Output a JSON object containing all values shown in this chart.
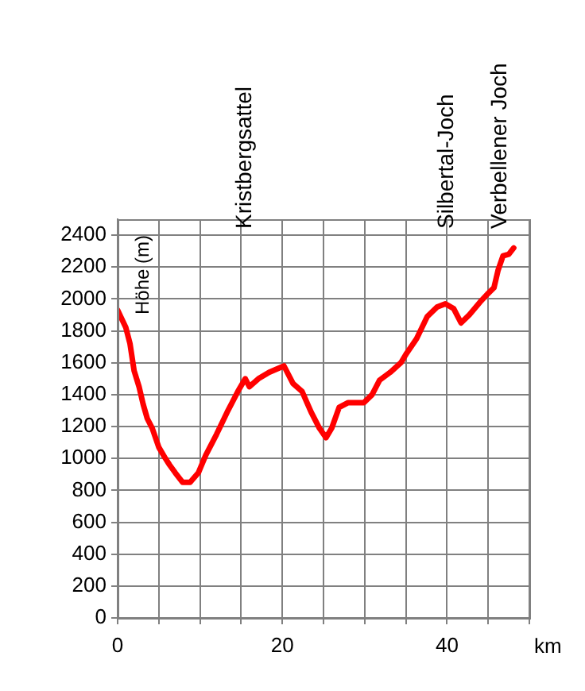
{
  "chart_data": {
    "type": "line",
    "xlabel": "km",
    "ylabel": "Höhe (m)",
    "x": [
      0,
      1.0,
      1.5,
      2.0,
      2.6,
      3.1,
      3.6,
      4.2,
      5.0,
      5.8,
      6.3,
      7.0,
      7.9,
      8.8,
      9.8,
      10.7,
      12.0,
      13.3,
      14.6,
      15.5,
      16.0,
      17.1,
      18.4,
      20.2,
      21.3,
      22.4,
      23.5,
      24.5,
      25.3,
      26.0,
      26.9,
      28.0,
      29.9,
      30.9,
      31.8,
      33.1,
      34.4,
      35.1,
      36.3,
      37.6,
      38.8,
      39.8,
      40.8,
      41.7,
      42.7,
      44.0,
      44.9,
      45.7,
      46.2,
      46.8,
      47.5,
      48.1
    ],
    "series": [
      {
        "color": "#ff0000",
        "values": [
          1930,
          1820,
          1720,
          1550,
          1450,
          1340,
          1250,
          1190,
          1070,
          1000,
          960,
          910,
          850,
          850,
          910,
          1020,
          1150,
          1290,
          1420,
          1500,
          1450,
          1500,
          1540,
          1580,
          1470,
          1420,
          1290,
          1190,
          1130,
          1190,
          1320,
          1350,
          1350,
          1400,
          1490,
          1540,
          1600,
          1660,
          1750,
          1890,
          1950,
          1970,
          1940,
          1850,
          1900,
          1980,
          2030,
          2070,
          2180,
          2270,
          2280,
          2320
        ]
      }
    ],
    "xlim": [
      0,
      50
    ],
    "xticks": [
      0,
      {
        "value": 5,
        "label": null
      },
      {
        "value": 10,
        "label": null
      },
      {
        "value": 15,
        "label": null
      },
      20,
      {
        "value": 25,
        "label": null
      },
      {
        "value": 30,
        "label": null
      },
      {
        "value": 35,
        "label": null
      },
      40,
      {
        "value": 45,
        "label": null
      },
      {
        "value": 50,
        "label": null
      }
    ],
    "ylim": [
      0,
      2500
    ],
    "yticks": [
      0,
      200,
      400,
      600,
      800,
      1000,
      1200,
      1400,
      1600,
      1800,
      2000,
      2200,
      2400
    ],
    "grid": true,
    "legend": false,
    "marker": "none",
    "line_style": "solid",
    "annotations": [
      "Kristbergsattel",
      "Silbertal-Joch",
      "Verbellener Joch"
    ]
  }
}
